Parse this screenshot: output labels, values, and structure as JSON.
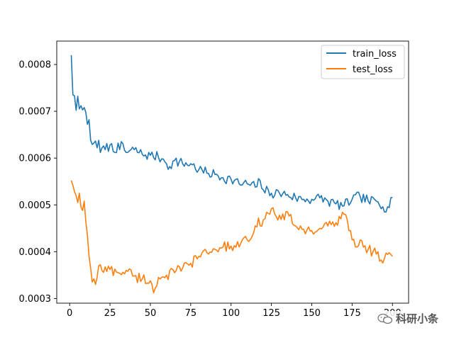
{
  "chart_data": {
    "type": "line",
    "xlim": [
      -8,
      210
    ],
    "ylim": [
      0.00029,
      0.00085
    ],
    "xticks": [
      0,
      25,
      50,
      75,
      100,
      125,
      150,
      175,
      200
    ],
    "yticks": [
      0.0003,
      0.0004,
      0.0005,
      0.0006,
      0.0007,
      0.0008
    ],
    "ytick_labels": [
      "0.0003",
      "0.0004",
      "0.0005",
      "0.0006",
      "0.0007",
      "0.0008"
    ],
    "legend_position": "upper-right",
    "grid": false,
    "series": [
      {
        "name": "train_loss",
        "color": "#1f77b4",
        "keyframes": [
          [
            1,
            0.00082
          ],
          [
            2,
            0.000735
          ],
          [
            3,
            0.000733
          ],
          [
            4,
            0.000702
          ],
          [
            5,
            0.000732
          ],
          [
            6,
            0.000705
          ],
          [
            7,
            0.000712
          ],
          [
            8,
            0.000703
          ],
          [
            9,
            0.000708
          ],
          [
            10,
            0.000698
          ],
          [
            11,
            0.000672
          ],
          [
            12,
            0.000682
          ],
          [
            13,
            0.000638
          ],
          [
            15,
            0.000632
          ],
          [
            17,
            0.000622
          ],
          [
            18,
            0.000638
          ],
          [
            19,
            0.000612
          ],
          [
            21,
            0.000626
          ],
          [
            22,
            0.000618
          ],
          [
            25,
            0.000628
          ],
          [
            28,
            0.000612
          ],
          [
            30,
            0.000632
          ],
          [
            35,
            0.000612
          ],
          [
            40,
            0.000618
          ],
          [
            45,
            0.000608
          ],
          [
            50,
            0.000606
          ],
          [
            55,
            0.000602
          ],
          [
            58,
            0.000598
          ],
          [
            60,
            0.000588
          ],
          [
            62,
            0.000582
          ],
          [
            65,
            0.000595
          ],
          [
            70,
            0.000588
          ],
          [
            75,
            0.000588
          ],
          [
            80,
            0.000575
          ],
          [
            85,
            0.000568
          ],
          [
            90,
            0.000565
          ],
          [
            95,
            0.000558
          ],
          [
            100,
            0.000555
          ],
          [
            105,
            0.000545
          ],
          [
            110,
            0.000545
          ],
          [
            115,
            0.000538
          ],
          [
            118,
            0.000552
          ],
          [
            120,
            0.000532
          ],
          [
            125,
            0.000525
          ],
          [
            130,
            0.000525
          ],
          [
            135,
            0.000522
          ],
          [
            140,
            0.000515
          ],
          [
            145,
            0.000512
          ],
          [
            150,
            0.000512
          ],
          [
            155,
            0.000515
          ],
          [
            160,
            0.000508
          ],
          [
            165,
            0.000502
          ],
          [
            170,
            0.000498
          ],
          [
            175,
            0.000512
          ],
          [
            180,
            0.000518
          ],
          [
            185,
            0.000508
          ],
          [
            190,
            0.000508
          ],
          [
            194,
            0.000496
          ],
          [
            197,
            0.000496
          ],
          [
            200,
            0.000516
          ]
        ],
        "noise": 1.15e-05
      },
      {
        "name": "test_loss",
        "color": "#ff7f0e",
        "keyframes": [
          [
            1,
            0.000552
          ],
          [
            2,
            0.000542
          ],
          [
            3,
            0.000528
          ],
          [
            4,
            0.00052
          ],
          [
            5,
            0.000505
          ],
          [
            6,
            0.000525
          ],
          [
            7,
            0.000495
          ],
          [
            8,
            0.000488
          ],
          [
            9,
            0.000508
          ],
          [
            10,
            0.000465
          ],
          [
            11,
            0.000435
          ],
          [
            12,
            0.00039
          ],
          [
            13,
            0.000365
          ],
          [
            14,
            0.000335
          ],
          [
            15,
            0.000342
          ],
          [
            16,
            0.00033
          ],
          [
            18,
            0.00037
          ],
          [
            20,
            0.00036
          ],
          [
            25,
            0.000362
          ],
          [
            30,
            0.000355
          ],
          [
            35,
            0.00036
          ],
          [
            40,
            0.000348
          ],
          [
            45,
            0.000342
          ],
          [
            50,
            0.000338
          ],
          [
            52,
            0.000312
          ],
          [
            55,
            0.000345
          ],
          [
            60,
            0.00035
          ],
          [
            65,
            0.000355
          ],
          [
            70,
            0.000365
          ],
          [
            75,
            0.000375
          ],
          [
            80,
            0.00039
          ],
          [
            85,
            0.000398
          ],
          [
            90,
            0.000405
          ],
          [
            95,
            0.00041
          ],
          [
            100,
            0.000412
          ],
          [
            105,
            0.00041
          ],
          [
            110,
            0.000425
          ],
          [
            115,
            0.000455
          ],
          [
            120,
            0.000468
          ],
          [
            123,
            0.000482
          ],
          [
            125,
            0.000492
          ],
          [
            128,
            0.000475
          ],
          [
            130,
            0.000478
          ],
          [
            133,
            0.000468
          ],
          [
            135,
            0.000485
          ],
          [
            138,
            0.00046
          ],
          [
            140,
            0.000455
          ],
          [
            145,
            0.000448
          ],
          [
            150,
            0.000445
          ],
          [
            155,
            0.00045
          ],
          [
            160,
            0.000455
          ],
          [
            165,
            0.000462
          ],
          [
            168,
            0.00047
          ],
          [
            170,
            0.00048
          ],
          [
            172,
            0.000468
          ],
          [
            174,
            0.000445
          ],
          [
            175,
            0.000425
          ],
          [
            178,
            0.00041
          ],
          [
            180,
            0.000425
          ],
          [
            185,
            0.000405
          ],
          [
            190,
            0.000395
          ],
          [
            195,
            0.000385
          ],
          [
            198,
            0.000398
          ],
          [
            200,
            0.00039
          ]
        ],
        "noise": 1.2e-05
      }
    ]
  },
  "watermark": {
    "text": "科研小条",
    "icon": "wechat-icon"
  }
}
